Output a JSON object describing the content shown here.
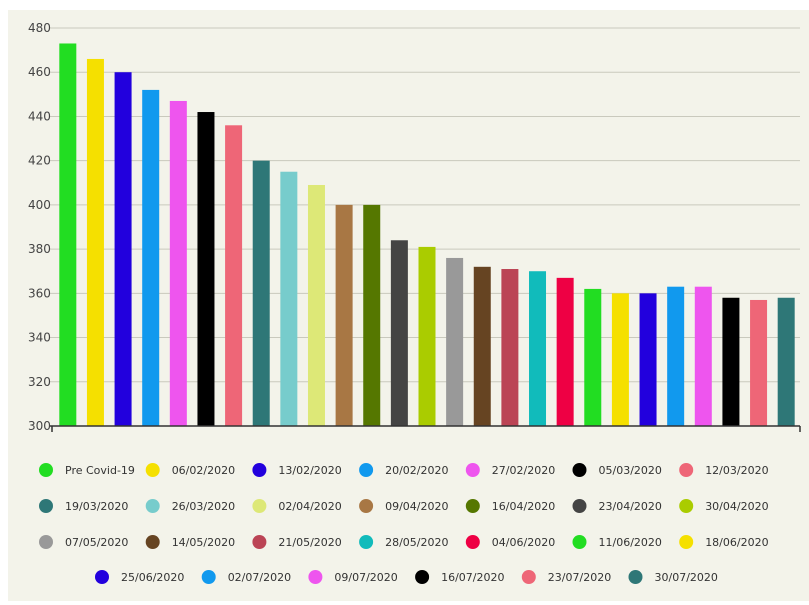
{
  "header": {
    "title": ""
  },
  "chart_data": {
    "type": "bar",
    "title": "",
    "xlabel": "",
    "ylabel": "",
    "ylim": [
      300,
      480
    ],
    "yticks": [
      300,
      320,
      340,
      360,
      380,
      400,
      420,
      440,
      460,
      480
    ],
    "grid": true,
    "legend_position": "bottom",
    "categories": [
      "Pre Covid-19",
      "06/02/2020",
      "13/02/2020",
      "20/02/2020",
      "27/02/2020",
      "05/03/2020",
      "12/03/2020",
      "19/03/2020",
      "26/03/2020",
      "02/04/2020",
      "09/04/2020",
      "16/04/2020",
      "23/04/2020",
      "30/04/2020",
      "07/05/2020",
      "14/05/2020",
      "21/05/2020",
      "28/05/2020",
      "04/06/2020",
      "11/06/2020",
      "18/06/2020",
      "25/06/2020",
      "02/07/2020",
      "09/07/2020",
      "16/07/2020",
      "23/07/2020",
      "30/07/2020"
    ],
    "values": [
      473,
      466,
      460,
      452,
      447,
      442,
      436,
      420,
      415,
      409,
      400,
      400,
      384,
      381,
      376,
      372,
      371,
      370,
      367,
      362,
      360,
      360,
      363,
      363,
      358,
      357,
      358
    ],
    "colors": [
      "#22dd22",
      "#f5e000",
      "#2200dd",
      "#1199ee",
      "#ee55ee",
      "#000000",
      "#ee6677",
      "#2e7777",
      "#77cccc",
      "#dde877",
      "#a87744",
      "#557700",
      "#444444",
      "#aacc00",
      "#999999",
      "#664422",
      "#bb4455",
      "#11bbbb",
      "#ee0044",
      "#22dd22",
      "#f5e000",
      "#2200dd",
      "#1199ee",
      "#ee55ee",
      "#000000",
      "#ee6677",
      "#2e7777"
    ]
  }
}
